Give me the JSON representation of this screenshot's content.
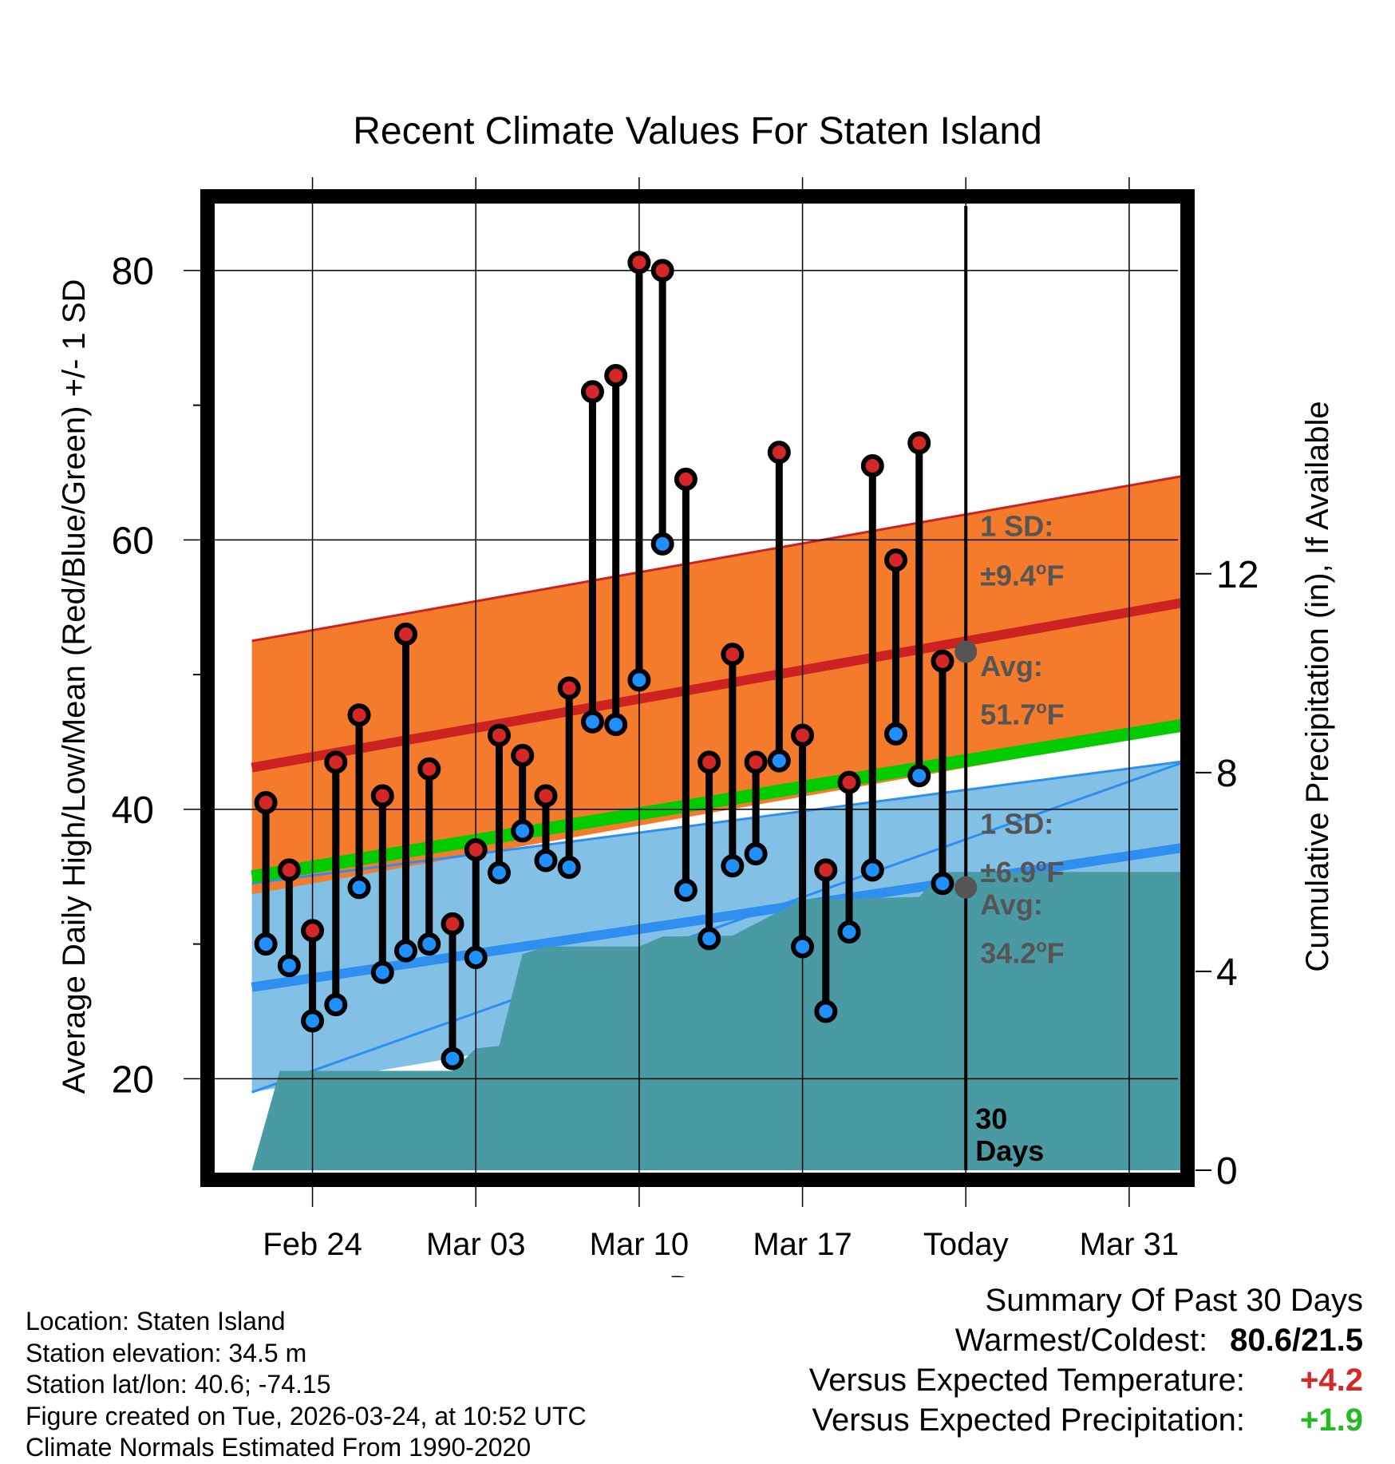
{
  "chart_data": {
    "type": "line",
    "title": "Recent Climate Values For Staten Island",
    "xlabel": "Day",
    "ylabel": "Average Daily High/Low/Mean (Red/Blue/Green) +/- 1 SD",
    "y2label": "Cumulative Precipitation (in), If Available",
    "ylim": [
      12.5,
      85.5
    ],
    "y2lim": [
      0,
      19.4
    ],
    "xlim": [
      -4.5,
      37.5
    ],
    "x_tick_labels": [
      {
        "day": 0,
        "label": "Feb 24"
      },
      {
        "day": 7,
        "label": "Mar 03"
      },
      {
        "day": 14,
        "label": "Mar 10"
      },
      {
        "day": 21,
        "label": "Mar 17"
      },
      {
        "day": 28,
        "label": "Today"
      },
      {
        "day": 35,
        "label": "Mar 31"
      }
    ],
    "y_ticks": [
      20,
      40,
      60,
      80
    ],
    "y_minor_ticks": [
      30,
      50,
      70
    ],
    "y2_ticks": [
      0,
      4,
      8,
      12
    ],
    "daily": {
      "days": [
        -2,
        -1,
        0,
        1,
        2,
        3,
        4,
        5,
        6,
        7,
        8,
        9,
        10,
        11,
        12,
        13,
        14,
        15,
        16,
        17,
        18,
        19,
        20,
        21,
        22,
        23,
        24,
        25,
        26,
        27
      ],
      "highs": [
        40.5,
        35.5,
        31,
        43.5,
        47,
        41,
        53,
        43,
        31.5,
        37,
        45.5,
        44,
        41,
        49,
        71,
        72.2,
        80.6,
        80,
        64.5,
        43.5,
        51.5,
        43.5,
        66.5,
        45.5,
        35.5,
        42,
        65.5,
        58.5,
        67.2,
        51
      ],
      "lows": [
        30,
        28.4,
        24.3,
        25.5,
        34.2,
        27.9,
        29.5,
        30,
        21.5,
        29,
        35.3,
        38.4,
        36.2,
        35.7,
        46.5,
        46.3,
        49.6,
        59.7,
        34,
        30.4,
        35.8,
        36.7,
        43.6,
        29.8,
        25,
        30.9,
        35.5,
        45.6,
        42.5,
        34.5
      ]
    },
    "normals": {
      "days": [
        -2.6,
        37.5
      ],
      "avg_high": [
        43.1,
        55.4
      ],
      "high_sd_band": [
        [
          52.5,
          33.7
        ],
        [
          64.8,
          46.0
        ]
      ],
      "avg_low": [
        26.8,
        37.2
      ],
      "low_sd_band": [
        [
          19.0,
          34.5
        ],
        [
          43.6,
          30.8
        ]
      ],
      "avg_mean": [
        35.0,
        46.3
      ]
    },
    "cumulative_precip": {
      "days": [
        -2.6,
        -1.4,
        -0.2,
        6,
        7,
        8,
        9,
        10,
        14,
        15,
        18,
        21,
        22,
        26,
        27,
        37.5
      ],
      "values": [
        0,
        2.0,
        2.0,
        2.0,
        2.45,
        2.5,
        4.35,
        4.5,
        4.5,
        4.7,
        4.72,
        5.45,
        5.45,
        5.5,
        6.0,
        6.0
      ]
    },
    "annotations": {
      "high_sd_line1": "1 SD:",
      "high_sd_line2": "±9.4",
      "high_avg_line1": "Avg:",
      "high_avg_line2": "51.7",
      "low_sd_line1": "1 SD:",
      "low_sd_line2": "±6.9",
      "low_avg_line1": "Avg:",
      "low_avg_line2": "34.2",
      "degree_symbol": "o",
      "unit": "F",
      "today_line1": "30",
      "today_line2": "Days",
      "high_avg_value": 51.7,
      "low_avg_value": 34.2
    },
    "colors": {
      "high": "#d62728",
      "high_band": "#f47a2c",
      "high_line": "#cc2222",
      "low": "#1e90ff",
      "low_band": "#82c0e6",
      "low_line": "#2f8ff0",
      "mean": "#00cc00",
      "precip": "#4a9aa3",
      "annotation": "#555555"
    }
  },
  "info": {
    "location": "Location: Staten Island",
    "elevation": "Station elevation: 34.5 m",
    "latlon": "Station lat/lon: 40.6; -74.15",
    "created": "Figure created on Tue, 2026-03-24, at 10:52 UTC",
    "normals": "Climate Normals Estimated From 1990-2020"
  },
  "summary": {
    "title": "Summary Of Past 30 Days",
    "warm_cold_label": "Warmest/Coldest:",
    "warm_cold_value": "80.6/21.5",
    "temp_label": "Versus Expected Temperature:",
    "temp_value": "+4.2",
    "precip_label": "Versus Expected Precipitation:",
    "precip_value": "+1.9"
  }
}
